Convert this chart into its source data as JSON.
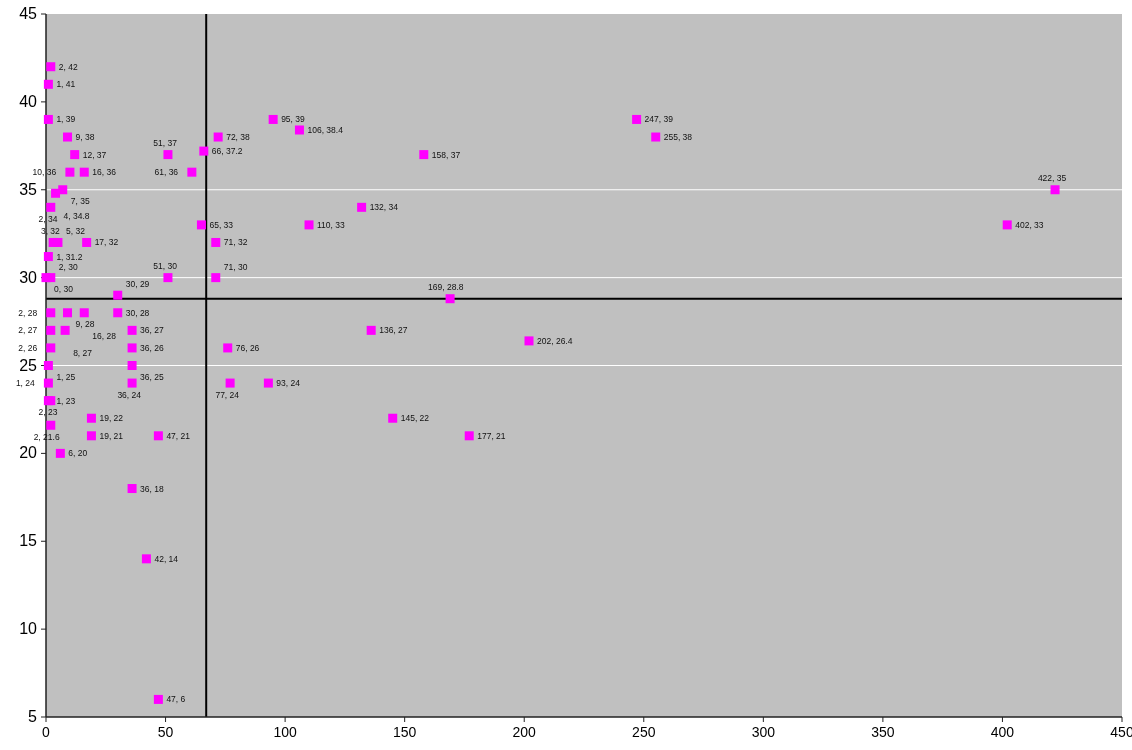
{
  "chart_data": {
    "type": "scatter",
    "xlim": [
      0,
      450
    ],
    "ylim": [
      5,
      45
    ],
    "xticks": [
      0,
      50,
      100,
      150,
      200,
      250,
      300,
      350,
      400,
      450
    ],
    "yticks": [
      5,
      10,
      15,
      20,
      25,
      30,
      35,
      40,
      45
    ],
    "grid": false,
    "marker": "square",
    "ref_lines": [
      {
        "axis": "y",
        "value": 25,
        "color": "#ffffff"
      },
      {
        "axis": "y",
        "value": 30,
        "color": "#ffffff"
      },
      {
        "axis": "y",
        "value": 35,
        "color": "#ffffff"
      },
      {
        "axis": "x",
        "value": 67,
        "color": "#000000"
      },
      {
        "axis": "y",
        "value": 28.8,
        "color": "#000000"
      }
    ],
    "series": [
      {
        "color": "#ff00ff",
        "x": [
          2,
          1,
          1,
          9,
          12,
          10,
          16,
          7,
          4,
          2,
          3,
          5,
          17,
          1,
          2,
          0,
          51,
          71,
          2,
          9,
          16,
          30,
          30,
          2,
          8,
          2,
          1,
          1,
          1,
          2,
          2,
          19,
          19,
          6,
          36,
          36,
          36,
          36,
          36,
          42,
          47,
          47,
          51,
          66,
          61,
          72,
          65,
          71,
          95,
          106,
          158,
          132,
          110,
          169,
          136,
          202,
          76,
          77,
          93,
          145,
          177,
          247,
          255,
          422,
          402
        ],
        "values": [
          42,
          41,
          39,
          38,
          37,
          36,
          36,
          35,
          34.8,
          34,
          32,
          32,
          32,
          31.2,
          30,
          30,
          30,
          30,
          28,
          28,
          28,
          29,
          28,
          27,
          27,
          26,
          25,
          24,
          23,
          23,
          21.6,
          22,
          21,
          20,
          27,
          26,
          25,
          24,
          18,
          14,
          6,
          21,
          37,
          37.2,
          36,
          38,
          33,
          32,
          39,
          38.4,
          37,
          34,
          33,
          28.8,
          27,
          26.4,
          26,
          24,
          24,
          22,
          21,
          39,
          38,
          35,
          33
        ],
        "value_labels": [
          "2, 42",
          "1, 41",
          "1, 39",
          "9, 38",
          "12, 37",
          "10, 36",
          "16, 36",
          "7, 35",
          "4, 34.8",
          "2, 34",
          "3, 32",
          "5, 32",
          "17, 32",
          "1, 31.2",
          "2, 30",
          "0, 30",
          "51, 30",
          "71, 30",
          "2, 28",
          "9, 28",
          "16, 28",
          "30, 29",
          "30, 28",
          "2, 27",
          "8, 27",
          "2, 26",
          "1, 25",
          "1, 24",
          "1, 23",
          "2, 23",
          "2, 21.6",
          "19, 22",
          "19, 21",
          "6, 20",
          "36, 27",
          "36, 26",
          "36, 25",
          "36, 24",
          "36, 18",
          "42, 14",
          "47, 6",
          "47, 21",
          "51, 37",
          "66, 37.2",
          "61, 36",
          "72, 38",
          "65, 33",
          "71, 32",
          "95, 39",
          "106, 38.4",
          "158, 37",
          "132, 34",
          "110, 33",
          "169, 28.8",
          "136, 27",
          "202, 26.4",
          "76, 26",
          "77, 24",
          "93, 24",
          "145, 22",
          "177, 21",
          "247, 39",
          "255, 38",
          "422, 35",
          "402, 33"
        ]
      }
    ]
  }
}
